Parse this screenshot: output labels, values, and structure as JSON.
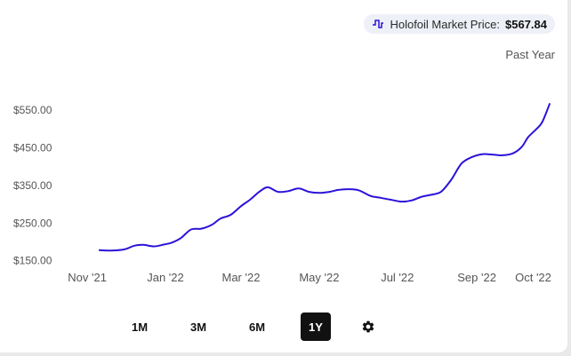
{
  "legend": {
    "label": "Holofoil Market Price:",
    "value": "$567.84",
    "icon": "price-line-icon"
  },
  "range_label": "Past Year",
  "buttons": [
    {
      "label": "1M",
      "active": false
    },
    {
      "label": "3M",
      "active": false
    },
    {
      "label": "6M",
      "active": false
    },
    {
      "label": "1Y",
      "active": true
    }
  ],
  "settings_icon": "gear-icon",
  "colors": {
    "line": "#2b12d9",
    "active_button": "#111111"
  },
  "chart_data": {
    "type": "line",
    "title": "",
    "xlabel": "",
    "ylabel": "",
    "y_ticks": [
      "$150.00",
      "$250.00",
      "$350.00",
      "$450.00",
      "$550.00"
    ],
    "y_tick_values": [
      150,
      250,
      350,
      450,
      550
    ],
    "ylim": [
      135,
      595
    ],
    "x_ticks": [
      "Nov '21",
      "Jan '22",
      "Mar '22",
      "May '22",
      "Jul '22",
      "Sep '22",
      "Oct '22"
    ],
    "x_tick_values": [
      "2021-11-01",
      "2022-01-01",
      "2022-03-01",
      "2022-05-01",
      "2022-07-01",
      "2022-09-01",
      "2022-10-15"
    ],
    "xlim": [
      "2021-10-25",
      "2022-11-01"
    ],
    "grid": false,
    "series": [
      {
        "x": [
          "2021-11-10",
          "2021-11-20",
          "2021-11-30",
          "2021-12-08",
          "2021-12-15",
          "2021-12-23",
          "2021-12-31",
          "2022-01-06",
          "2022-01-13",
          "2022-01-21",
          "2022-01-29",
          "2022-02-06",
          "2022-02-13",
          "2022-02-21",
          "2022-03-01",
          "2022-03-08",
          "2022-03-16",
          "2022-03-22",
          "2022-03-30",
          "2022-04-07",
          "2022-04-15",
          "2022-04-23",
          "2022-05-01",
          "2022-05-09",
          "2022-05-16",
          "2022-05-24",
          "2022-06-01",
          "2022-06-10",
          "2022-06-18",
          "2022-06-26",
          "2022-07-04",
          "2022-07-12",
          "2022-07-20",
          "2022-07-27",
          "2022-08-04",
          "2022-08-12",
          "2022-08-20",
          "2022-08-28",
          "2022-09-05",
          "2022-09-13",
          "2022-09-21",
          "2022-09-29",
          "2022-10-06",
          "2022-10-11",
          "2022-10-17",
          "2022-10-22",
          "2022-10-28"
        ],
        "values": [
          178,
          177,
          180,
          190,
          192,
          188,
          193,
          198,
          210,
          233,
          235,
          245,
          262,
          272,
          295,
          312,
          335,
          345,
          333,
          335,
          342,
          333,
          330,
          333,
          338,
          340,
          337,
          322,
          317,
          312,
          307,
          310,
          320,
          325,
          333,
          365,
          408,
          425,
          433,
          432,
          430,
          435,
          452,
          478,
          498,
          518,
          568
        ]
      }
    ]
  }
}
